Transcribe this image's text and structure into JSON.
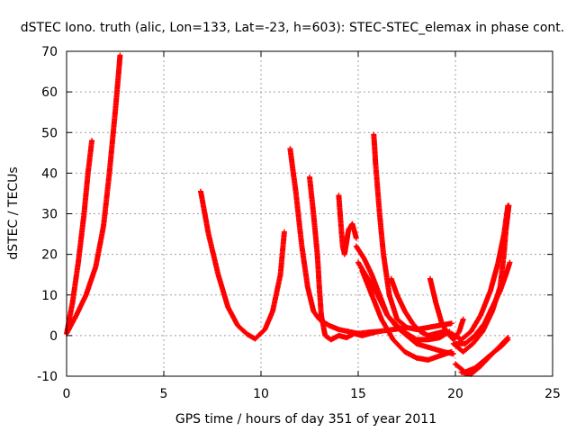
{
  "chart_data": {
    "type": "scatter",
    "title": "dSTEC Iono. truth (alic, Lon=133, Lat=-23, h=603): STEC-STEC_elemax in phase cont.",
    "xlabel": "GPS time / hours of day 351 of year 2011",
    "ylabel": "dSTEC  / TECUs",
    "xlim": [
      0,
      25
    ],
    "ylim": [
      -10,
      70
    ],
    "xticks": [
      0,
      5,
      10,
      15,
      20,
      25
    ],
    "yticks": [
      -10,
      0,
      10,
      20,
      30,
      40,
      50,
      60,
      70
    ],
    "grid": true,
    "marker": "+",
    "color": "#ff0000",
    "series": [
      {
        "x": [
          0.0,
          0.3,
          0.6,
          0.9,
          1.1,
          1.3
        ],
        "y": [
          0.5,
          8,
          18,
          30,
          40,
          48
        ]
      },
      {
        "x": [
          0.0,
          0.5,
          1.0,
          1.5,
          1.9,
          2.2,
          2.5,
          2.7,
          2.75
        ],
        "y": [
          0.5,
          5,
          10,
          17,
          27,
          40,
          55,
          66,
          69
        ]
      },
      {
        "x": [
          6.9,
          7.3,
          7.8,
          8.3,
          8.8,
          9.3,
          9.7,
          10.2,
          10.6,
          11.0,
          11.2
        ],
        "y": [
          35.5,
          25,
          15,
          7,
          2.5,
          0.3,
          -0.8,
          1.5,
          6,
          15,
          25.5
        ]
      },
      {
        "x": [
          11.5,
          11.8,
          12.1,
          12.4,
          12.7,
          13.0,
          13.5,
          14.0,
          14.5,
          15.0,
          15.5,
          16.0,
          16.8,
          17.5
        ],
        "y": [
          46,
          35,
          22,
          12,
          6,
          4,
          2.5,
          1.5,
          1,
          0.5,
          0.8,
          1,
          1.5,
          2
        ]
      },
      {
        "x": [
          12.5,
          12.7,
          12.9,
          13.0,
          13.1,
          13.3,
          13.6,
          14.0,
          14.4,
          14.8,
          15.2,
          15.6,
          16.0
        ],
        "y": [
          39,
          30,
          20,
          12,
          5,
          0,
          -1,
          0,
          -0.5,
          0.5,
          0,
          0.5,
          1
        ]
      },
      {
        "x": [
          14.0,
          14.1,
          14.2,
          14.3,
          14.5,
          14.7,
          14.9
        ],
        "y": [
          34.5,
          28,
          22,
          20,
          26,
          27.5,
          24
        ]
      },
      {
        "x": [
          15.8,
          15.9,
          16.1,
          16.3,
          16.6,
          17.0,
          17.5,
          18.0,
          18.6,
          19.2,
          19.8
        ],
        "y": [
          49.5,
          42,
          30,
          20,
          10,
          4,
          2,
          1.5,
          2,
          2.5,
          3
        ]
      },
      {
        "x": [
          14.9,
          15.3,
          15.7,
          16.1,
          16.5,
          17.0,
          17.5,
          18.0,
          18.6,
          19.2,
          19.7
        ],
        "y": [
          22,
          19,
          15,
          10,
          5,
          2.5,
          0.5,
          -1,
          -1,
          -0.5,
          1
        ]
      },
      {
        "x": [
          15.0,
          15.5,
          16.0,
          16.5,
          17.0,
          17.5,
          18.0,
          18.7,
          19.4,
          19.9
        ],
        "y": [
          18,
          14,
          10,
          5,
          2,
          0,
          -2,
          -3,
          -4,
          -4.5
        ]
      },
      {
        "x": [
          15.2,
          15.7,
          16.2,
          16.8,
          17.4,
          18.0,
          18.6,
          19.2,
          19.8
        ],
        "y": [
          16,
          10,
          4,
          -1,
          -4,
          -5.5,
          -6,
          -5,
          -4
        ]
      },
      {
        "x": [
          16.7,
          17.0,
          17.4,
          17.8,
          18.2,
          18.6,
          19.0,
          19.4
        ],
        "y": [
          14,
          10,
          6,
          3,
          1,
          0,
          0.5,
          1
        ]
      },
      {
        "x": [
          18.7,
          19.0,
          19.3,
          19.6,
          19.9,
          20.2,
          20.4
        ],
        "y": [
          14,
          8,
          3,
          0.5,
          -1,
          1,
          4
        ]
      },
      {
        "x": [
          19.8,
          20.3,
          20.8,
          21.3,
          21.8,
          22.2,
          22.5,
          22.7
        ],
        "y": [
          0.5,
          -1,
          1,
          5,
          11,
          18,
          25,
          32
        ]
      },
      {
        "x": [
          19.9,
          20.4,
          20.9,
          21.4,
          21.9,
          22.3,
          22.5,
          22.6,
          22.75
        ],
        "y": [
          -2,
          -4,
          -2,
          1,
          6,
          12,
          20,
          26,
          32
        ]
      },
      {
        "x": [
          20.0,
          20.5,
          21.0,
          21.5,
          22.0,
          22.3,
          22.6,
          22.8
        ],
        "y": [
          -2,
          -2,
          0,
          3,
          8,
          11,
          15,
          18
        ]
      },
      {
        "x": [
          20.0,
          20.5,
          21.0,
          21.5,
          22.0,
          22.4,
          22.7
        ],
        "y": [
          -7,
          -9,
          -8,
          -6,
          -4,
          -2.5,
          -1
        ]
      },
      {
        "x": [
          20.3,
          20.8,
          21.3,
          21.8,
          22.3,
          22.7
        ],
        "y": [
          -9,
          -9.5,
          -7.5,
          -5,
          -2.5,
          -0.5
        ]
      }
    ]
  }
}
